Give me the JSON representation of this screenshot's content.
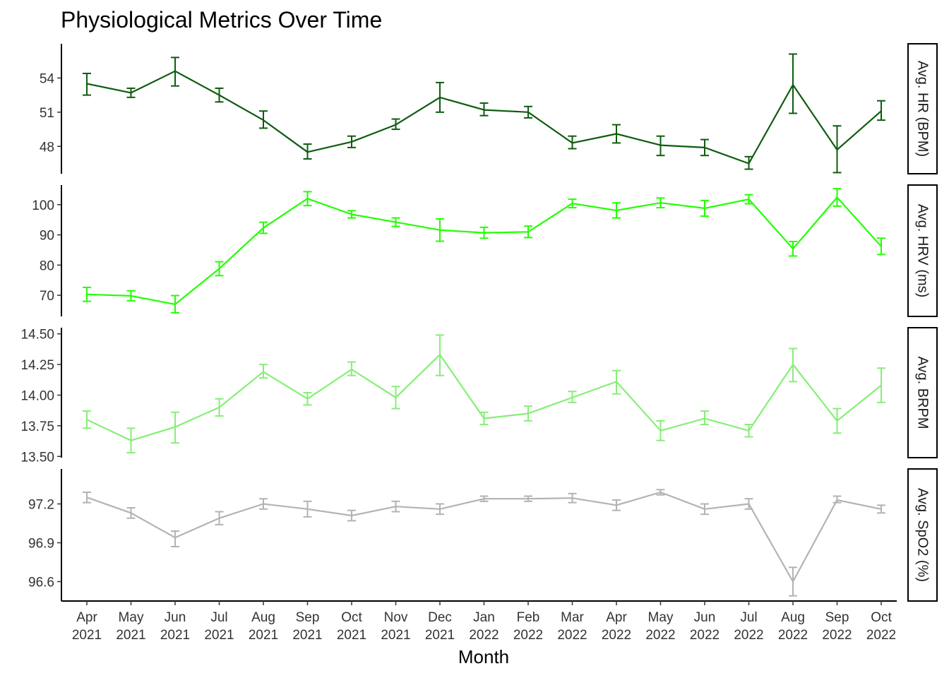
{
  "chart_data": {
    "type": "line",
    "title": "Physiological Metrics Over Time",
    "xlabel": "Month",
    "categories": [
      [
        "Apr",
        "2021"
      ],
      [
        "May",
        "2021"
      ],
      [
        "Jun",
        "2021"
      ],
      [
        "Jul",
        "2021"
      ],
      [
        "Aug",
        "2021"
      ],
      [
        "Sep",
        "2021"
      ],
      [
        "Oct",
        "2021"
      ],
      [
        "Nov",
        "2021"
      ],
      [
        "Dec",
        "2021"
      ],
      [
        "Jan",
        "2022"
      ],
      [
        "Feb",
        "2022"
      ],
      [
        "Mar",
        "2022"
      ],
      [
        "Apr",
        "2022"
      ],
      [
        "May",
        "2022"
      ],
      [
        "Jun",
        "2022"
      ],
      [
        "Jul",
        "2022"
      ],
      [
        "Aug",
        "2022"
      ],
      [
        "Sep",
        "2022"
      ],
      [
        "Oct",
        "2022"
      ]
    ],
    "grid": false,
    "error_bars": true,
    "facets": [
      {
        "label": "Avg. HR (BPM)",
        "color": "#0e5c0e",
        "ylim": [
          45.6,
          57.0
        ],
        "ticks": [
          {
            "v": 48,
            "label": "48"
          },
          {
            "v": 51,
            "label": "51"
          },
          {
            "v": 54,
            "label": "54"
          }
        ],
        "values": [
          53.5,
          52.7,
          54.6,
          52.5,
          50.3,
          47.5,
          48.4,
          49.9,
          52.3,
          51.2,
          51.0,
          48.3,
          49.1,
          48.1,
          47.9,
          46.5,
          53.4,
          47.7,
          51.1
        ],
        "lower": [
          52.5,
          52.3,
          53.3,
          51.9,
          49.6,
          46.9,
          47.9,
          49.5,
          51.0,
          50.7,
          50.5,
          47.8,
          48.3,
          47.2,
          47.2,
          46.0,
          50.9,
          45.7,
          50.3
        ],
        "upper": [
          54.4,
          53.1,
          55.8,
          53.1,
          51.1,
          48.2,
          48.9,
          50.4,
          53.6,
          51.8,
          51.5,
          48.9,
          49.9,
          48.9,
          48.6,
          47.1,
          56.1,
          49.8,
          52.0
        ]
      },
      {
        "label": "Avg. HRV (ms)",
        "color": "#22ff00",
        "ylim": [
          63.0,
          106.5
        ],
        "ticks": [
          {
            "v": 70,
            "label": "70"
          },
          {
            "v": 80,
            "label": "80"
          },
          {
            "v": 90,
            "label": "90"
          },
          {
            "v": 100,
            "label": "100"
          }
        ],
        "values": [
          70.3,
          69.8,
          67.0,
          78.8,
          92.3,
          102.0,
          96.8,
          94.2,
          91.6,
          90.7,
          91.0,
          100.4,
          98.1,
          100.6,
          98.8,
          101.8,
          85.4,
          102.4,
          86.2
        ],
        "lower": [
          68.0,
          68.2,
          64.2,
          76.5,
          90.5,
          99.7,
          95.6,
          92.8,
          87.9,
          88.9,
          89.1,
          99.0,
          95.6,
          99.0,
          96.2,
          100.3,
          83.0,
          99.5,
          83.5
        ],
        "upper": [
          72.6,
          71.5,
          69.9,
          81.1,
          94.2,
          104.3,
          98.0,
          95.6,
          95.3,
          92.5,
          92.9,
          101.8,
          100.6,
          102.2,
          101.4,
          103.3,
          87.8,
          105.3,
          88.9
        ]
      },
      {
        "label": "Avg. BRPM",
        "color": "#86ee77",
        "ylim": [
          13.49,
          14.55
        ],
        "ticks": [
          {
            "v": 13.5,
            "label": "13.50"
          },
          {
            "v": 13.75,
            "label": "13.75"
          },
          {
            "v": 14.0,
            "label": "14.00"
          },
          {
            "v": 14.25,
            "label": "14.25"
          },
          {
            "v": 14.5,
            "label": "14.50"
          }
        ],
        "values": [
          13.8,
          13.63,
          13.74,
          13.9,
          14.19,
          13.97,
          14.21,
          13.98,
          14.33,
          13.81,
          13.85,
          13.98,
          14.11,
          13.71,
          13.81,
          13.71,
          14.25,
          13.79,
          14.08
        ],
        "lower": [
          13.73,
          13.53,
          13.61,
          13.83,
          14.14,
          13.92,
          14.16,
          13.89,
          14.16,
          13.76,
          13.79,
          13.94,
          14.01,
          13.63,
          13.76,
          13.66,
          14.11,
          13.69,
          13.94
        ],
        "upper": [
          13.87,
          13.73,
          13.86,
          13.97,
          14.25,
          14.02,
          14.27,
          14.07,
          14.49,
          13.86,
          13.91,
          14.03,
          14.2,
          13.79,
          13.87,
          13.76,
          14.38,
          13.89,
          14.22
        ]
      },
      {
        "label": "Avg. SpO2 (%)",
        "color": "#b3b3b3",
        "ylim": [
          96.45,
          97.47
        ],
        "ticks": [
          {
            "v": 96.6,
            "label": "96.6"
          },
          {
            "v": 96.9,
            "label": "96.9"
          },
          {
            "v": 97.2,
            "label": "97.2"
          }
        ],
        "values": [
          97.25,
          97.13,
          96.94,
          97.09,
          97.2,
          97.16,
          97.11,
          97.18,
          97.16,
          97.24,
          97.24,
          97.245,
          97.19,
          97.29,
          97.16,
          97.2,
          96.6,
          97.23,
          97.16
        ],
        "lower": [
          97.21,
          97.09,
          96.87,
          97.04,
          97.16,
          97.1,
          97.07,
          97.14,
          97.12,
          97.22,
          97.22,
          97.21,
          97.15,
          97.27,
          97.12,
          97.16,
          96.49,
          97.21,
          97.13
        ],
        "upper": [
          97.29,
          97.17,
          96.99,
          97.14,
          97.24,
          97.22,
          97.15,
          97.22,
          97.2,
          97.26,
          97.26,
          97.28,
          97.23,
          97.31,
          97.2,
          97.24,
          96.71,
          97.26,
          97.19
        ]
      }
    ]
  }
}
